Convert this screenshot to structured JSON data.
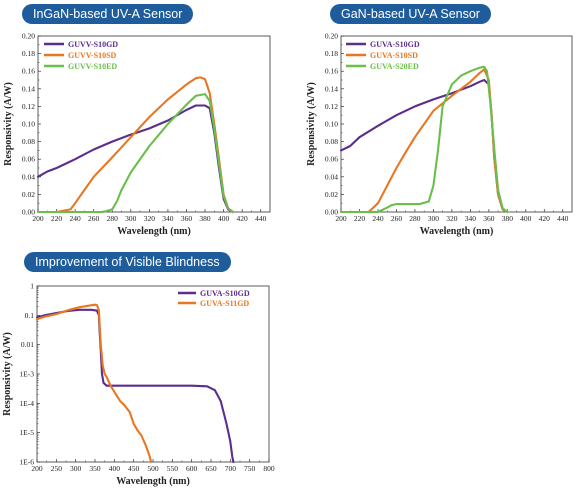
{
  "panels": {
    "p1": {
      "title": "InGaN-based UV-A Sensor"
    },
    "p2": {
      "title": "GaN-based UV-A Sensor"
    },
    "p3": {
      "title": "Improvement of Visible Blindness"
    }
  },
  "chart_data": [
    {
      "type": "line",
      "title": "InGaN-based UV-A Sensor",
      "xlabel": "Wavelength (nm)",
      "ylabel": "Responsivity (A/W)",
      "xlim": [
        200,
        450
      ],
      "ylim": [
        0,
        0.2
      ],
      "xticks": [
        200,
        220,
        240,
        260,
        280,
        300,
        320,
        340,
        360,
        380,
        400,
        420,
        440
      ],
      "yticks": [
        0.0,
        0.02,
        0.04,
        0.06,
        0.08,
        0.1,
        0.12,
        0.14,
        0.16,
        0.18,
        0.2
      ],
      "ytick_labels": [
        "0.00",
        "0.02",
        "0.04",
        "0.06",
        "0.08",
        "0.10",
        "0.12",
        "0.14",
        "0.16",
        "0.18",
        "0.20"
      ],
      "legend_position": "top-left",
      "series": [
        {
          "name": "GUVV-S10GD",
          "color": "#5b2d8e",
          "x": [
            200,
            210,
            220,
            240,
            260,
            280,
            300,
            320,
            340,
            360,
            370,
            380,
            385,
            390,
            395,
            400,
            405,
            410
          ],
          "y": [
            0.04,
            0.046,
            0.05,
            0.06,
            0.071,
            0.08,
            0.088,
            0.095,
            0.104,
            0.116,
            0.121,
            0.121,
            0.118,
            0.09,
            0.05,
            0.015,
            0.003,
            0.0
          ]
        },
        {
          "name": "GUVV-S10SD",
          "color": "#e87722",
          "x": [
            200,
            220,
            235,
            240,
            250,
            260,
            280,
            300,
            320,
            340,
            360,
            370,
            375,
            380,
            385,
            390,
            395,
            400,
            405,
            410
          ],
          "y": [
            0.0,
            0.0,
            0.003,
            0.01,
            0.025,
            0.04,
            0.062,
            0.085,
            0.108,
            0.128,
            0.145,
            0.152,
            0.153,
            0.151,
            0.135,
            0.1,
            0.06,
            0.02,
            0.004,
            0.0
          ]
        },
        {
          "name": "GUVV-S10ED",
          "color": "#6abf4b",
          "x": [
            200,
            270,
            280,
            285,
            290,
            300,
            320,
            340,
            360,
            370,
            380,
            385,
            390,
            395,
            400,
            405,
            410
          ],
          "y": [
            0.0,
            0.0,
            0.003,
            0.012,
            0.025,
            0.045,
            0.075,
            0.1,
            0.122,
            0.132,
            0.134,
            0.126,
            0.095,
            0.055,
            0.018,
            0.004,
            0.0
          ]
        }
      ]
    },
    {
      "type": "line",
      "title": "GaN-based UV-A Sensor",
      "xlabel": "Wavelength (nm)",
      "ylabel": "Responsivity (A/W)",
      "xlim": [
        200,
        450
      ],
      "ylim": [
        0,
        0.2
      ],
      "xticks": [
        200,
        220,
        240,
        260,
        280,
        300,
        320,
        340,
        360,
        380,
        400,
        420,
        440
      ],
      "yticks": [
        0.0,
        0.02,
        0.04,
        0.06,
        0.08,
        0.1,
        0.12,
        0.14,
        0.16,
        0.18,
        0.2
      ],
      "ytick_labels": [
        "0.00",
        "0.02",
        "0.04",
        "0.06",
        "0.08",
        "0.10",
        "0.12",
        "0.14",
        "0.16",
        "0.18",
        "0.20"
      ],
      "legend_position": "top-left",
      "series": [
        {
          "name": "GUVA-S10GD",
          "color": "#5b2d8e",
          "x": [
            200,
            210,
            220,
            240,
            260,
            280,
            300,
            320,
            340,
            350,
            355,
            360,
            363,
            366,
            370,
            375,
            380
          ],
          "y": [
            0.07,
            0.075,
            0.085,
            0.098,
            0.11,
            0.12,
            0.128,
            0.135,
            0.143,
            0.148,
            0.15,
            0.145,
            0.11,
            0.06,
            0.02,
            0.003,
            0.0
          ]
        },
        {
          "name": "GUVA-S10SD",
          "color": "#e87722",
          "x": [
            200,
            230,
            240,
            250,
            260,
            270,
            280,
            300,
            320,
            340,
            350,
            355,
            360,
            363,
            366,
            370,
            375,
            380
          ],
          "y": [
            0.0,
            0.0,
            0.01,
            0.03,
            0.05,
            0.068,
            0.085,
            0.115,
            0.132,
            0.148,
            0.158,
            0.162,
            0.15,
            0.11,
            0.06,
            0.02,
            0.003,
            0.0
          ]
        },
        {
          "name": "GUVA-S20ED",
          "color": "#6abf4b",
          "x": [
            200,
            240,
            250,
            255,
            260,
            270,
            285,
            295,
            300,
            305,
            310,
            320,
            330,
            340,
            350,
            355,
            358,
            362,
            366,
            370,
            375,
            380
          ],
          "y": [
            0.0,
            0.0,
            0.005,
            0.008,
            0.009,
            0.009,
            0.009,
            0.012,
            0.03,
            0.07,
            0.12,
            0.145,
            0.155,
            0.16,
            0.164,
            0.165,
            0.16,
            0.12,
            0.07,
            0.025,
            0.004,
            0.0
          ]
        }
      ]
    },
    {
      "type": "line",
      "title": "Improvement of Visible Blindness",
      "xlabel": "Wavelength (nm)",
      "ylabel": "Responsivity (A/W)",
      "xlim": [
        200,
        800
      ],
      "ylim": [
        1e-06,
        1
      ],
      "yscale": "log",
      "xticks": [
        200,
        250,
        300,
        350,
        400,
        450,
        500,
        550,
        600,
        650,
        700,
        750,
        800
      ],
      "yticks": [
        1,
        0.1,
        0.01,
        0.001,
        0.0001,
        1e-05,
        1e-06
      ],
      "ytick_labels": [
        "1",
        "0.1",
        "0.01",
        "1E-3",
        "1E-4",
        "1E-5",
        "1E-6"
      ],
      "legend_position": "top-right",
      "series": [
        {
          "name": "GUVA-S10GD",
          "color": "#5b2d8e",
          "x": [
            200,
            220,
            250,
            280,
            310,
            340,
            355,
            360,
            362,
            365,
            368,
            372,
            380,
            400,
            450,
            500,
            550,
            600,
            640,
            660,
            675,
            690,
            700,
            705,
            708
          ],
          "y": [
            0.085,
            0.1,
            0.12,
            0.14,
            0.155,
            0.155,
            0.145,
            0.1,
            0.03,
            0.006,
            0.001,
            0.0005,
            0.0004,
            0.0004,
            0.0004,
            0.0004,
            0.0004,
            0.0004,
            0.00038,
            0.00028,
            0.00012,
            2e-05,
            5e-06,
            1.5e-06,
            1e-06
          ]
        },
        {
          "name": "GUVA-S11GD",
          "color": "#e87722",
          "x": [
            200,
            220,
            250,
            280,
            310,
            340,
            350,
            355,
            360,
            362,
            365,
            370,
            375,
            380,
            390,
            400,
            415,
            425,
            440,
            450,
            460,
            470,
            480,
            490,
            495
          ],
          "y": [
            0.075,
            0.09,
            0.11,
            0.15,
            0.19,
            0.22,
            0.23,
            0.225,
            0.15,
            0.05,
            0.01,
            0.002,
            0.001,
            0.0008,
            0.0004,
            0.00025,
            0.00012,
            9e-05,
            5e-05,
            2e-05,
            1.2e-05,
            8e-06,
            4e-06,
            1.8e-06,
            1e-06
          ]
        }
      ]
    }
  ]
}
